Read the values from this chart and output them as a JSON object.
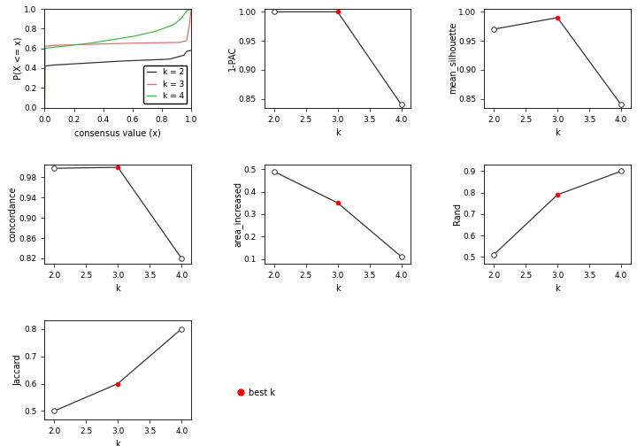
{
  "k_values": [
    2,
    3,
    4
  ],
  "one_minus_pac": [
    1.0,
    1.0,
    0.84
  ],
  "mean_silhouette": [
    0.97,
    0.99,
    0.84
  ],
  "concordance": [
    0.998,
    1.0,
    0.82
  ],
  "area_increased": [
    0.49,
    0.35,
    0.11
  ],
  "rand": [
    0.51,
    0.79,
    0.9
  ],
  "jaccard": [
    0.5,
    0.6,
    0.8
  ],
  "best_k_index": 1,
  "ecdf_colors": [
    "#333333",
    "#e07070",
    "#44bb44"
  ],
  "ecdf_labels": [
    "k = 2",
    "k = 3",
    "k = 4"
  ],
  "line_color": "#333333",
  "dot_open_color": "white",
  "dot_closed_color": "red",
  "bg_color": "white",
  "axis_label_fontsize": 7,
  "tick_fontsize": 6.5
}
